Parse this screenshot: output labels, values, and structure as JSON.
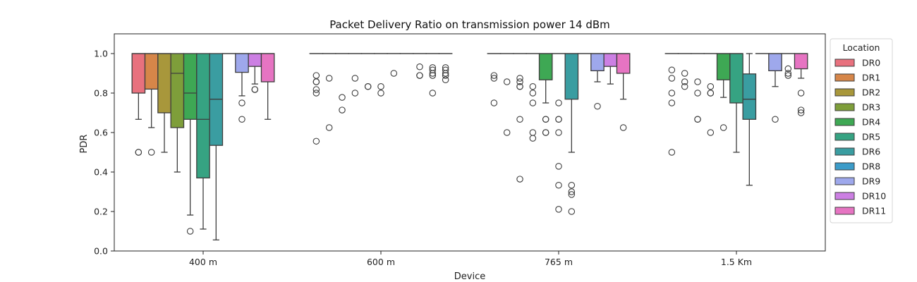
{
  "chart_data": {
    "type": "box",
    "title": "Packet Delivery Ratio on transmission power 14 dBm",
    "xlabel": "Device",
    "ylabel": "PDR",
    "ylim": [
      0,
      1.1
    ],
    "yticks": [
      "0.0",
      "0.2",
      "0.4",
      "0.6",
      "0.8",
      "1.0"
    ],
    "categories": [
      "400 m",
      "600 m",
      "765 m",
      "1.5 Km"
    ],
    "legend": {
      "title": "Location",
      "placement": "right"
    },
    "series": [
      {
        "name": "DR0",
        "color": "#E8717E",
        "boxes": [
          {
            "q1": 0.8,
            "median": 1.0,
            "q3": 1.0,
            "wlo": 0.667,
            "whi": 1.0,
            "fliers": [
              0.5,
              0.5
            ]
          },
          {
            "q1": 1.0,
            "median": 1.0,
            "q3": 1.0,
            "wlo": 1.0,
            "whi": 1.0,
            "fliers": [
              0.889,
              0.857,
              0.857,
              0.818,
              0.8,
              0.556
            ]
          },
          {
            "q1": 1.0,
            "median": 1.0,
            "q3": 1.0,
            "wlo": 1.0,
            "whi": 1.0,
            "fliers": [
              0.889,
              0.875,
              0.75
            ]
          },
          {
            "q1": 1.0,
            "median": 1.0,
            "q3": 1.0,
            "wlo": 1.0,
            "whi": 1.0,
            "fliers": [
              0.917,
              0.875,
              0.8,
              0.75,
              0.5
            ]
          }
        ]
      },
      {
        "name": "DR1",
        "color": "#D68649",
        "boxes": [
          {
            "q1": 0.82,
            "median": 1.0,
            "q3": 1.0,
            "wlo": 0.625,
            "whi": 1.0,
            "fliers": [
              0.5
            ]
          },
          {
            "q1": 1.0,
            "median": 1.0,
            "q3": 1.0,
            "wlo": 1.0,
            "whi": 1.0,
            "fliers": [
              0.875,
              0.625
            ]
          },
          {
            "q1": 1.0,
            "median": 1.0,
            "q3": 1.0,
            "wlo": 1.0,
            "whi": 1.0,
            "fliers": [
              0.857,
              0.6
            ]
          },
          {
            "q1": 1.0,
            "median": 1.0,
            "q3": 1.0,
            "wlo": 1.0,
            "whi": 1.0,
            "fliers": [
              0.9,
              0.857,
              0.833
            ]
          }
        ]
      },
      {
        "name": "DR2",
        "color": "#A8973B",
        "boxes": [
          {
            "q1": 0.7,
            "median": 1.0,
            "q3": 1.0,
            "wlo": 0.5,
            "whi": 1.0,
            "fliers": []
          },
          {
            "q1": 1.0,
            "median": 1.0,
            "q3": 1.0,
            "wlo": 1.0,
            "whi": 1.0,
            "fliers": [
              0.778,
              0.714
            ]
          },
          {
            "q1": 1.0,
            "median": 1.0,
            "q3": 1.0,
            "wlo": 1.0,
            "whi": 1.0,
            "fliers": [
              0.875,
              0.857,
              0.833,
              0.833,
              0.667,
              0.364
            ]
          },
          {
            "q1": 1.0,
            "median": 1.0,
            "q3": 1.0,
            "wlo": 1.0,
            "whi": 1.0,
            "fliers": [
              0.857,
              0.8,
              0.667,
              0.667
            ]
          }
        ]
      },
      {
        "name": "DR3",
        "color": "#7E9E3A",
        "boxes": [
          {
            "q1": 0.625,
            "median": 0.9,
            "q3": 1.0,
            "wlo": 0.4,
            "whi": 1.0,
            "fliers": []
          },
          {
            "q1": 1.0,
            "median": 1.0,
            "q3": 1.0,
            "wlo": 1.0,
            "whi": 1.0,
            "fliers": [
              0.875,
              0.8
            ]
          },
          {
            "q1": 1.0,
            "median": 1.0,
            "q3": 1.0,
            "wlo": 1.0,
            "whi": 1.0,
            "fliers": [
              0.833,
              0.8,
              0.75,
              0.6,
              0.571
            ]
          },
          {
            "q1": 1.0,
            "median": 1.0,
            "q3": 1.0,
            "wlo": 1.0,
            "whi": 1.0,
            "fliers": [
              0.833,
              0.8,
              0.8,
              0.6
            ]
          }
        ]
      },
      {
        "name": "DR4",
        "color": "#3EA854",
        "boxes": [
          {
            "q1": 0.667,
            "median": 0.8,
            "q3": 1.0,
            "wlo": 0.182,
            "whi": 1.0,
            "fliers": [
              0.1
            ]
          },
          {
            "q1": 1.0,
            "median": 1.0,
            "q3": 1.0,
            "wlo": 1.0,
            "whi": 1.0,
            "fliers": [
              0.833,
              0.833
            ]
          },
          {
            "q1": 0.867,
            "median": 1.0,
            "q3": 1.0,
            "wlo": 0.75,
            "whi": 1.0,
            "fliers": [
              0.667,
              0.667,
              0.6,
              0.6
            ]
          },
          {
            "q1": 0.867,
            "median": 1.0,
            "q3": 1.0,
            "wlo": 0.778,
            "whi": 1.0,
            "fliers": [
              0.625
            ]
          }
        ]
      },
      {
        "name": "DR5",
        "color": "#36A382",
        "boxes": [
          {
            "q1": 0.37,
            "median": 0.667,
            "q3": 1.0,
            "wlo": 0.111,
            "whi": 1.0,
            "fliers": []
          },
          {
            "q1": 1.0,
            "median": 1.0,
            "q3": 1.0,
            "wlo": 1.0,
            "whi": 1.0,
            "fliers": [
              0.833,
              0.8
            ]
          },
          {
            "q1": 1.0,
            "median": 1.0,
            "q3": 1.0,
            "wlo": 1.0,
            "whi": 1.0,
            "fliers": [
              0.75,
              0.667,
              0.667,
              0.6,
              0.429,
              0.333,
              0.211
            ]
          },
          {
            "q1": 0.75,
            "median": 1.0,
            "q3": 1.0,
            "wlo": 0.5,
            "whi": 1.0,
            "fliers": []
          }
        ]
      },
      {
        "name": "DR6",
        "color": "#3A9DA1",
        "boxes": [
          {
            "q1": 0.535,
            "median": 0.769,
            "q3": 1.0,
            "wlo": 0.056,
            "whi": 1.0,
            "fliers": []
          },
          {
            "q1": 1.0,
            "median": 1.0,
            "q3": 1.0,
            "wlo": 1.0,
            "whi": 1.0,
            "fliers": [
              0.9
            ]
          },
          {
            "q1": 0.769,
            "median": 1.0,
            "q3": 1.0,
            "wlo": 0.5,
            "whi": 1.0,
            "fliers": [
              0.333,
              0.3,
              0.286,
              0.2
            ]
          },
          {
            "q1": 0.667,
            "median": 0.769,
            "q3": 0.897,
            "wlo": 0.333,
            "whi": 1.0,
            "fliers": []
          }
        ]
      },
      {
        "name": "DR8",
        "color": "#3C9CC9",
        "boxes": [
          {
            "q1": 1.0,
            "median": 1.0,
            "q3": 1.0,
            "wlo": 1.0,
            "whi": 1.0,
            "fliers": []
          },
          {
            "q1": 1.0,
            "median": 1.0,
            "q3": 1.0,
            "wlo": 1.0,
            "whi": 1.0,
            "fliers": []
          },
          {
            "q1": 1.0,
            "median": 1.0,
            "q3": 1.0,
            "wlo": 1.0,
            "whi": 1.0,
            "fliers": []
          },
          {
            "q1": 1.0,
            "median": 1.0,
            "q3": 1.0,
            "wlo": 1.0,
            "whi": 1.0,
            "fliers": []
          }
        ]
      },
      {
        "name": "DR9",
        "color": "#9EA8EC",
        "boxes": [
          {
            "q1": 0.905,
            "median": 1.0,
            "q3": 1.0,
            "wlo": 0.786,
            "whi": 1.0,
            "fliers": [
              0.75,
              0.667
            ]
          },
          {
            "q1": 1.0,
            "median": 1.0,
            "q3": 1.0,
            "wlo": 1.0,
            "whi": 1.0,
            "fliers": [
              0.933,
              0.889,
              0.889
            ]
          },
          {
            "q1": 0.913,
            "median": 1.0,
            "q3": 1.0,
            "wlo": 0.857,
            "whi": 1.0,
            "fliers": [
              0.733
            ]
          },
          {
            "q1": 0.913,
            "median": 1.0,
            "q3": 1.0,
            "wlo": 0.833,
            "whi": 1.0,
            "fliers": [
              0.667
            ]
          }
        ]
      },
      {
        "name": "DR10",
        "color": "#CC7FE3",
        "boxes": [
          {
            "q1": 0.935,
            "median": 1.0,
            "q3": 1.0,
            "wlo": 0.846,
            "whi": 1.0,
            "fliers": [
              0.818,
              0.818
            ]
          },
          {
            "q1": 1.0,
            "median": 1.0,
            "q3": 1.0,
            "wlo": 1.0,
            "whi": 1.0,
            "fliers": [
              0.929,
              0.917,
              0.9,
              0.889,
              0.8
            ]
          },
          {
            "q1": 0.935,
            "median": 1.0,
            "q3": 1.0,
            "wlo": 0.846,
            "whi": 1.0,
            "fliers": []
          },
          {
            "q1": 1.0,
            "median": 1.0,
            "q3": 1.0,
            "wlo": 1.0,
            "whi": 1.0,
            "fliers": [
              0.923,
              0.9,
              0.889
            ]
          }
        ]
      },
      {
        "name": "DR11",
        "color": "#E674C2",
        "boxes": [
          {
            "q1": 0.857,
            "median": 1.0,
            "q3": 1.0,
            "wlo": 0.667,
            "whi": 1.0,
            "fliers": []
          },
          {
            "q1": 1.0,
            "median": 1.0,
            "q3": 1.0,
            "wlo": 1.0,
            "whi": 1.0,
            "fliers": [
              0.929,
              0.917,
              0.9,
              0.889,
              0.867
            ]
          },
          {
            "q1": 0.9,
            "median": 1.0,
            "q3": 1.0,
            "wlo": 0.769,
            "whi": 1.0,
            "fliers": [
              0.625
            ]
          },
          {
            "q1": 0.923,
            "median": 1.0,
            "q3": 1.0,
            "wlo": 0.875,
            "whi": 1.0,
            "fliers": [
              0.8,
              0.714,
              0.7
            ]
          }
        ]
      }
    ]
  }
}
